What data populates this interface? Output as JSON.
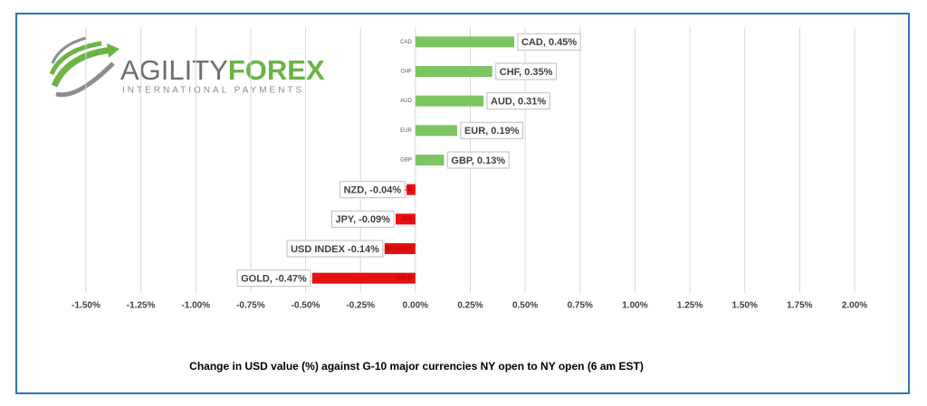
{
  "logo": {
    "brand_a": "AGILITY",
    "brand_b": "FOREX",
    "tagline": "INTERNATIONAL PAYMENTS"
  },
  "chart_data": {
    "type": "hbar",
    "title": "Change in  USD value (%)  against  G-10 major currencies  NY open to  NY open  (6 am EST)",
    "categories": [
      "CAD",
      "CHF",
      "AUD",
      "EUR",
      "GBP",
      "NZD",
      "JPY",
      "USD INDEX",
      "GOLD"
    ],
    "values": [
      0.45,
      0.35,
      0.31,
      0.19,
      0.13,
      -0.04,
      -0.09,
      -0.14,
      -0.47
    ],
    "value_labels": [
      "CAD, 0.45%",
      "CHF, 0.35%",
      "AUD, 0.31%",
      "EUR, 0.19%",
      "GBP, 0.13%",
      "NZD, -0.04%",
      "JPY, -0.09%",
      "USD INDEX -0.14%",
      "GOLD, -0.47%"
    ],
    "positive_color": "#7dc462",
    "negative_color": "#e8100f",
    "xlim": [
      -1.5,
      2.0
    ],
    "xticks": [
      {
        "value": -1.5,
        "label": "-1.50%"
      },
      {
        "value": -1.25,
        "label": "-1.25%"
      },
      {
        "value": -1.0,
        "label": "-1.00%"
      },
      {
        "value": -0.75,
        "label": "-0.75%"
      },
      {
        "value": -0.5,
        "label": "-0.50%"
      },
      {
        "value": -0.25,
        "label": "-0.25%"
      },
      {
        "value": 0,
        "label": "0.00%"
      },
      {
        "value": 0.25,
        "label": "0.25%"
      },
      {
        "value": 0.5,
        "label": "0.50%"
      },
      {
        "value": 0.75,
        "label": "0.75%"
      },
      {
        "value": 1.0,
        "label": "1.00%"
      },
      {
        "value": 1.25,
        "label": "1.25%"
      },
      {
        "value": 1.5,
        "label": "1.50%"
      },
      {
        "value": 1.75,
        "label": "1.75%"
      },
      {
        "value": 2.0,
        "label": "2.00%"
      }
    ],
    "grid": true
  }
}
